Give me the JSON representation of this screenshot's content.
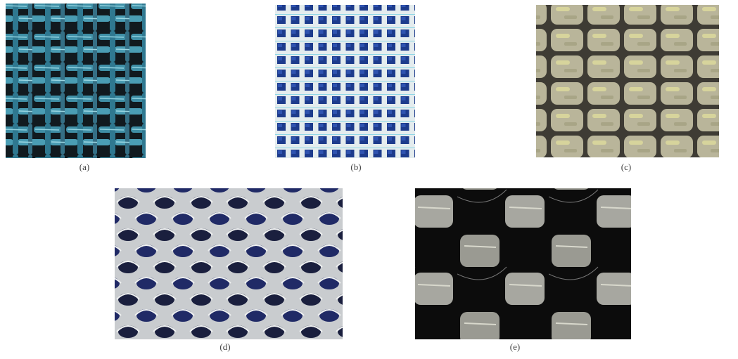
{
  "figure": {
    "panels": [
      {
        "caption": "(a)"
      },
      {
        "caption": "(b)"
      },
      {
        "caption": "(c)"
      },
      {
        "caption": "(d)"
      },
      {
        "caption": "(e)"
      }
    ]
  }
}
